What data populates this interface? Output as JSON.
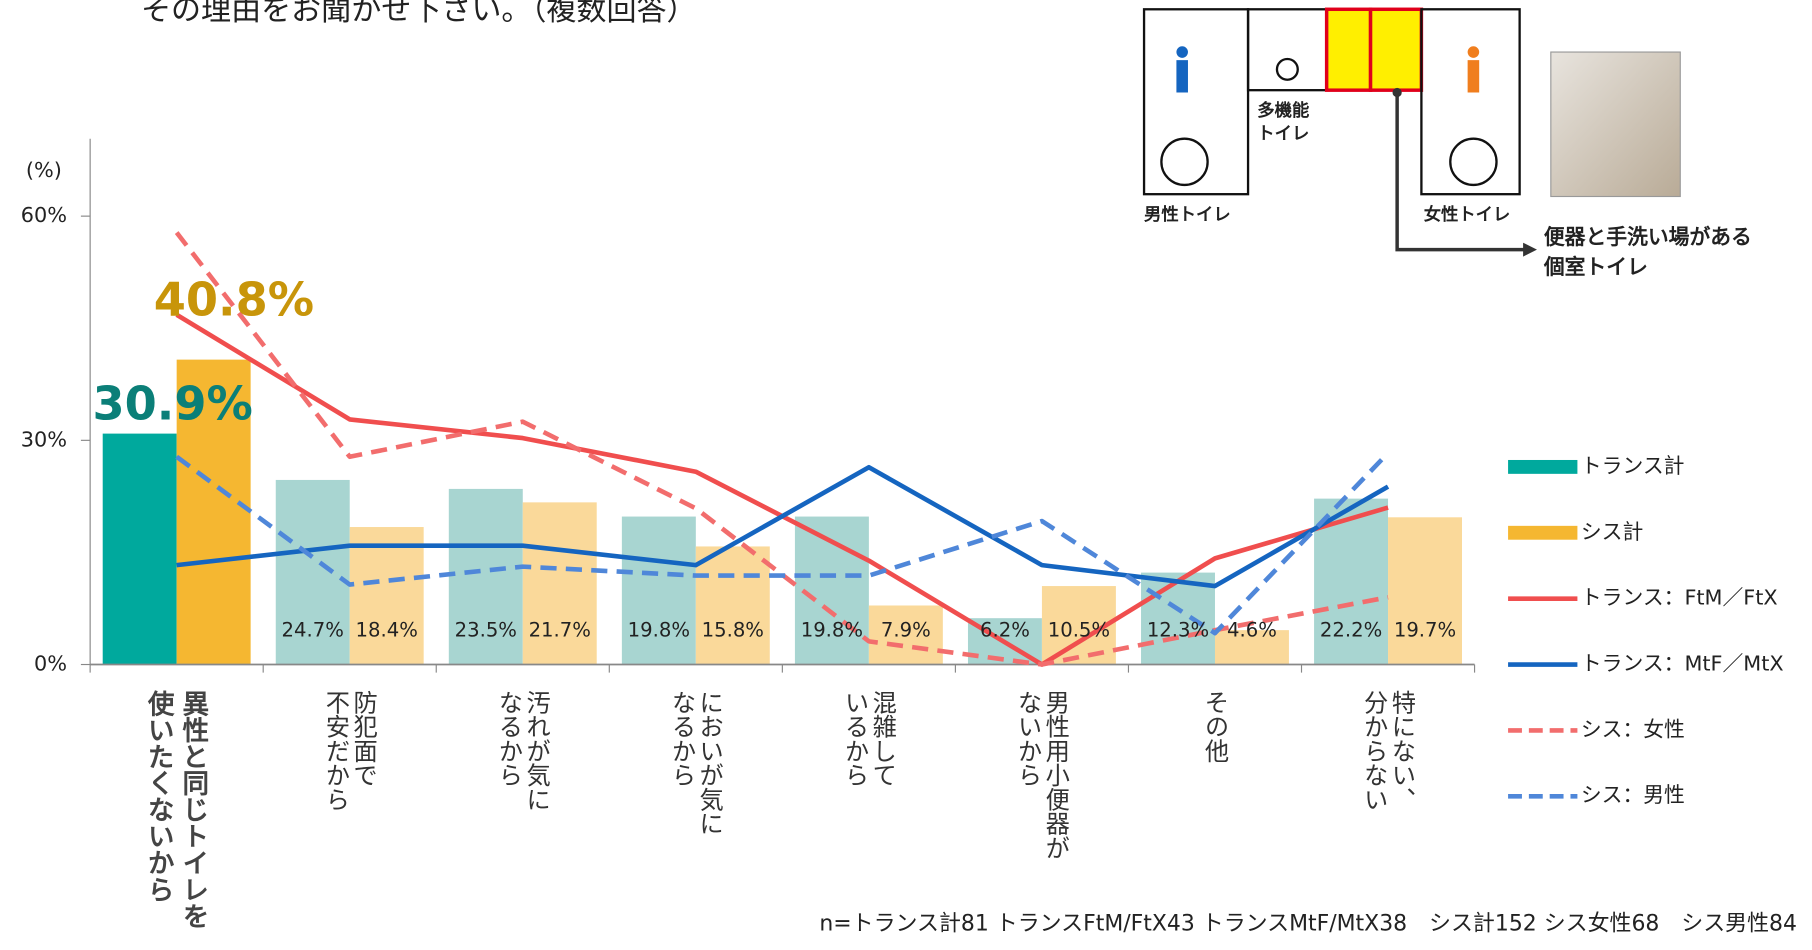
{
  "chart_data": {
    "type": "bar_line",
    "title": "その理由をお聞かせ下さい。（複数回答）",
    "y_label": "(%)",
    "note": "n=トランス計81 トランスFtM/FtX43 トランスMtF/MtX38　シス計152 シス女性68　シス男性84",
    "categories": [
      [
        "異性と同じトイレを",
        "使いたくないから"
      ],
      [
        "防犯面で",
        "不安だから"
      ],
      [
        "汚れが気に",
        "なるから"
      ],
      [
        "においが気に",
        "なるから"
      ],
      [
        "混雑して",
        "いるから"
      ],
      [
        "男性用小便器が",
        "ないから"
      ],
      [
        "その他"
      ],
      [
        "特にない、",
        "分からない"
      ]
    ],
    "ylim": [
      0,
      70
    ],
    "yticks": [
      {
        "value": 0,
        "label": "0%"
      },
      {
        "value": 30,
        "label": "30%"
      },
      {
        "value": 60,
        "label": "60%"
      }
    ],
    "series": [
      {
        "name": "トランス計",
        "type": "bar",
        "color": "#00a99d",
        "colors": [
          "#00a99d",
          "#a8d5d1",
          "#a8d5d1",
          "#a8d5d1",
          "#a8d5d1",
          "#a8d5d1",
          "#a8d5d1",
          "#a8d5d1"
        ],
        "label_color": "#0b7f78",
        "values": [
          30.9,
          24.7,
          23.5,
          19.8,
          19.8,
          6.2,
          12.3,
          22.2
        ],
        "value_labels": [
          "30.9%",
          "24.7%",
          "23.5%",
          "19.8%",
          "19.8%",
          "6.2%",
          "12.3%",
          "22.2%"
        ]
      },
      {
        "name": "シス計",
        "type": "bar",
        "color": "#f5b731",
        "colors": [
          "#f5b731",
          "#fad99a",
          "#fad99a",
          "#fad99a",
          "#fad99a",
          "#fad99a",
          "#fad99a",
          "#fad99a"
        ],
        "label_color": "#c8950a",
        "values": [
          40.8,
          18.4,
          21.7,
          15.8,
          7.9,
          10.5,
          4.6,
          19.7
        ],
        "value_labels": [
          "40.8%",
          "18.4%",
          "21.7%",
          "15.8%",
          "7.9%",
          "10.5%",
          "4.6%",
          "19.7%"
        ]
      },
      {
        "name": "トランス：FtM／FtX",
        "type": "line",
        "style": "solid",
        "color": "#f04e4e",
        "values": [
          46.8,
          32.8,
          30.3,
          25.8,
          13.9,
          0,
          14.2,
          21.0
        ]
      },
      {
        "name": "トランス：MtF／MtX",
        "type": "line",
        "style": "solid",
        "color": "#1565c0",
        "values": [
          13.3,
          15.9,
          15.9,
          13.3,
          26.4,
          13.3,
          10.5,
          23.8
        ]
      },
      {
        "name": "シス：女性",
        "type": "line",
        "style": "dashed",
        "color": "#f26d6d",
        "values": [
          57.8,
          27.8,
          32.5,
          20.9,
          3.1,
          0,
          4.6,
          9.0
        ]
      },
      {
        "name": "シス：男性",
        "type": "line",
        "style": "dashed",
        "color": "#4f87d9",
        "values": [
          27.8,
          10.7,
          13.1,
          11.9,
          11.9,
          19.2,
          4.2,
          28.3
        ]
      }
    ]
  },
  "diagram": {
    "labels": {
      "multi": [
        "多機能",
        "トイレ"
      ],
      "men": "男性トイレ",
      "women": "女性トイレ",
      "private": [
        "便器と手洗い場がある",
        "個室トイレ"
      ]
    }
  }
}
